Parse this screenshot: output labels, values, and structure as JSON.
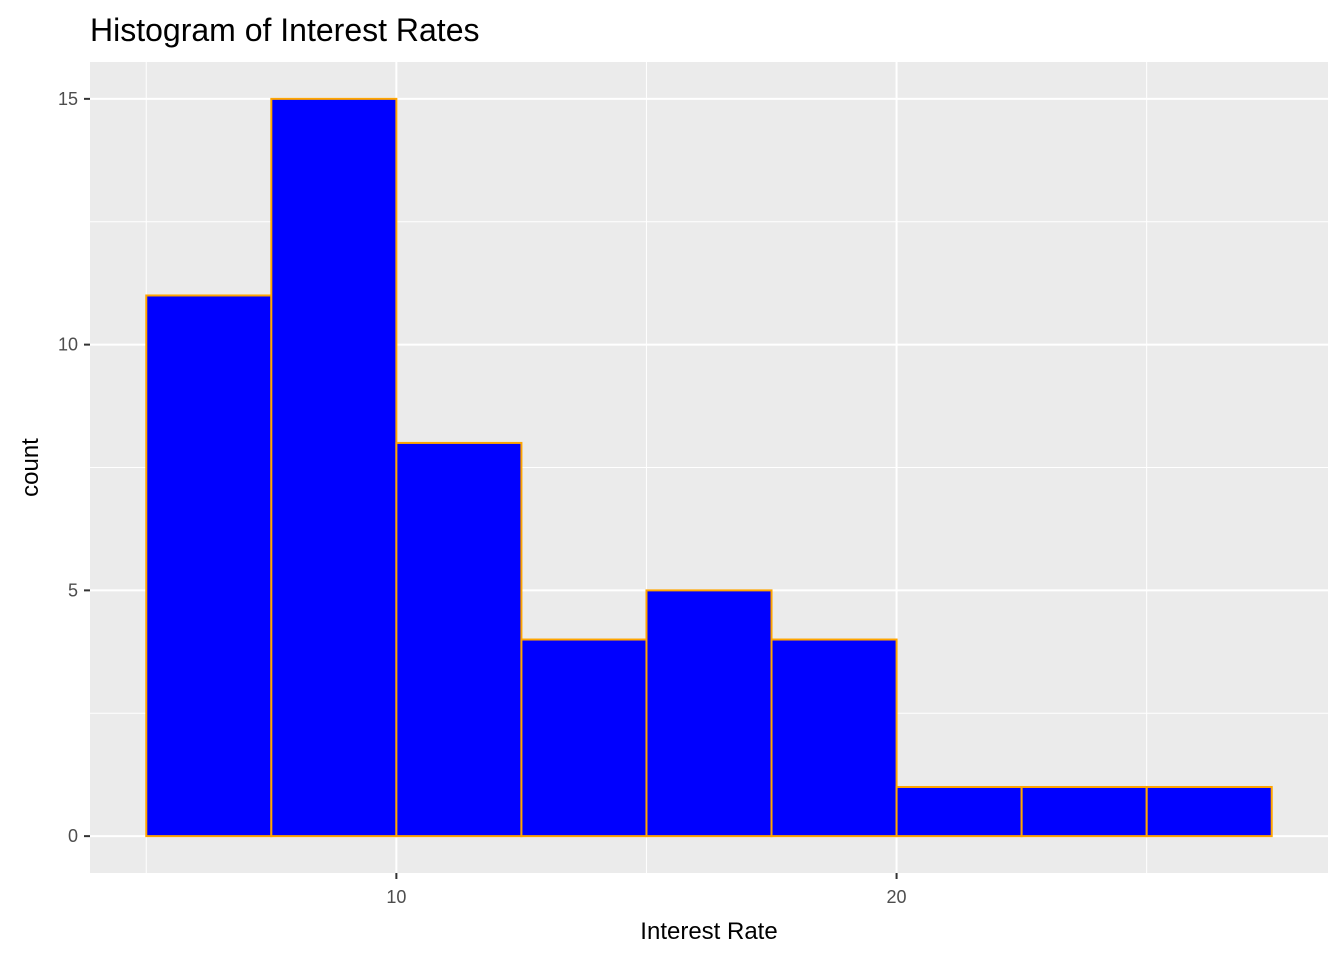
{
  "chart_data": {
    "type": "bar",
    "subtype": "histogram",
    "title": "Histogram of Interest Rates",
    "xlabel": "Interest Rate",
    "ylabel": "count",
    "bins": [
      {
        "x0": 5.0,
        "x1": 7.5,
        "count": 11
      },
      {
        "x0": 7.5,
        "x1": 10.0,
        "count": 15
      },
      {
        "x0": 10.0,
        "x1": 12.5,
        "count": 8
      },
      {
        "x0": 12.5,
        "x1": 15.0,
        "count": 4
      },
      {
        "x0": 15.0,
        "x1": 17.5,
        "count": 5
      },
      {
        "x0": 17.5,
        "x1": 20.0,
        "count": 4
      },
      {
        "x0": 20.0,
        "x1": 22.5,
        "count": 1
      },
      {
        "x0": 22.5,
        "x1": 25.0,
        "count": 1
      },
      {
        "x0": 25.0,
        "x1": 27.5,
        "count": 1
      }
    ],
    "xlim": [
      3.875,
      28.625
    ],
    "ylim": [
      -0.75,
      15.75
    ],
    "x_ticks": [
      10,
      20
    ],
    "x_minor_ticks": [
      5,
      15,
      25
    ],
    "y_ticks": [
      0,
      5,
      10,
      15
    ],
    "y_minor_ticks": [
      2.5,
      7.5,
      12.5
    ],
    "grid": true,
    "colors": {
      "fill": "#0000ff",
      "outline": "#ffa500",
      "panel": "#ebebeb",
      "grid": "#ffffff",
      "tick_text": "#4d4d4d",
      "tick_mark": "#333333"
    }
  }
}
